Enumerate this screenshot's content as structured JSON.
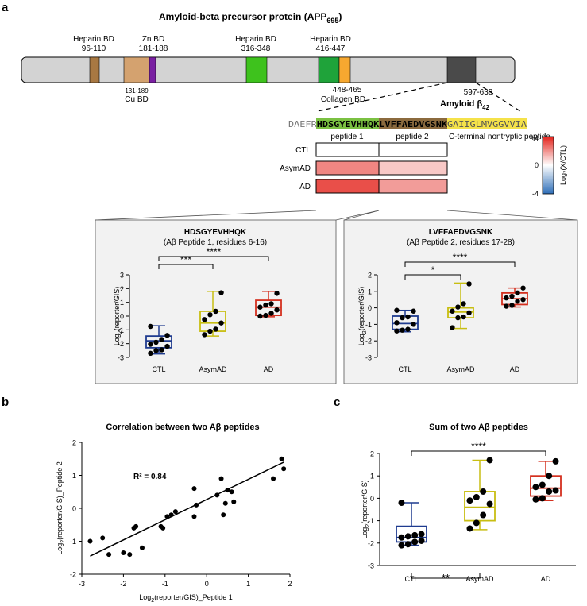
{
  "panel_labels": {
    "a": "a",
    "b": "b",
    "c": "c"
  },
  "panel_a": {
    "title_main": "Amyloid-beta precursor protein (APP",
    "title_sub": "695",
    "title_close": ")",
    "domains": [
      {
        "name": "Heparin BD",
        "range": "96-110",
        "color": "#a87842"
      },
      {
        "name": "Zn BD",
        "range": "181-188",
        "color": "#7a1fa2"
      },
      {
        "name": "Cu BD",
        "range": "131-189",
        "color": "#d4a26f"
      },
      {
        "name": "Heparin BD",
        "range": "316-348",
        "color": "#3ec21d"
      },
      {
        "name": "Heparin BD",
        "range": "416-447",
        "color": "#1fa33a"
      },
      {
        "name": "Collagen BD",
        "range": "448-465",
        "color": "#f7a830"
      },
      {
        "name": "Amyloid β",
        "range": "597-638",
        "color": "#4a4a4a",
        "sub": "42"
      }
    ],
    "sequence": {
      "prefix": "DAEFR",
      "peptide1": "HDSGYEVHHQK",
      "peptide2": "LVFFAEDVGSNK",
      "cterm": "GAIIGLMVGGVVIA",
      "peptide1_label": "peptide 1",
      "peptide2_label": "peptide 2",
      "cterm_label": "C-terminal nontryptic peptide",
      "peptide1_color": "#7bc142",
      "peptide2_color": "#8b6a3e",
      "cterm_color": "#f5e24a"
    },
    "heatmap": {
      "rows": [
        "CTL",
        "AsymAD",
        "AD"
      ],
      "peptide1": [
        0,
        2.2,
        3.2
      ],
      "peptide2": [
        0,
        1.0,
        1.8
      ]
    },
    "colorbar": {
      "max": "+4",
      "mid": "0",
      "min": "-4",
      "label": "Log₂(X/CTL)"
    },
    "inset1": {
      "title": "HDSGYEVHHQK",
      "subtitle": "(Aβ Peptide 1, residues 6-16)"
    },
    "inset2": {
      "title": "LVFFAEDVGSNK",
      "subtitle": "(Aβ Peptide 2, residues 17-28)"
    }
  },
  "chart_data": [
    {
      "type": "box",
      "id": "peptide1",
      "ylabel": "Log₂(reporter/GIS)",
      "ylim": [
        -3,
        3
      ],
      "yticks": [
        "3",
        "2",
        "1",
        "0",
        "-1",
        "-2",
        "-3"
      ],
      "categories": [
        "CTL",
        "AsymAD",
        "AD"
      ],
      "colors": [
        "#1f3b8f",
        "#c8be12",
        "#d4301f"
      ],
      "boxes": [
        {
          "min": -2.75,
          "q1": -2.3,
          "median": -1.8,
          "q3": -1.45,
          "max": -0.7
        },
        {
          "min": -1.45,
          "q1": -1.1,
          "median": -0.5,
          "q3": 0.35,
          "max": 1.8
        },
        {
          "min": -0.05,
          "q1": 0.05,
          "median": 0.65,
          "q3": 1.15,
          "max": 1.8
        }
      ],
      "points": [
        [
          -2.7,
          -2.5,
          -2.45,
          -2.2,
          -2.05,
          -1.9,
          -1.7,
          -1.4,
          -0.75
        ],
        [
          -1.35,
          -1.1,
          -0.95,
          -0.5,
          -0.25,
          0.1,
          0.35,
          1.7
        ],
        [
          0.0,
          0.05,
          0.2,
          0.45,
          0.65,
          0.8,
          0.9,
          1.65
        ]
      ],
      "significance": [
        {
          "from": 0,
          "to": 1,
          "label": "***"
        },
        {
          "from": 0,
          "to": 2,
          "label": "****"
        }
      ]
    },
    {
      "type": "box",
      "id": "peptide2",
      "ylabel": "Log₂(reporter/GIS)",
      "ylim": [
        -3,
        2
      ],
      "yticks": [
        "2",
        "1",
        "0",
        "-1",
        "-2",
        "-3"
      ],
      "categories": [
        "CTL",
        "AsymAD",
        "AD"
      ],
      "colors": [
        "#1f3b8f",
        "#c8be12",
        "#d4301f"
      ],
      "boxes": [
        {
          "min": -1.45,
          "q1": -1.3,
          "median": -0.95,
          "q3": -0.5,
          "max": -0.15
        },
        {
          "min": -1.25,
          "q1": -0.6,
          "median": -0.25,
          "q3": 0.0,
          "max": 1.5
        },
        {
          "min": 0.05,
          "q1": 0.2,
          "median": 0.55,
          "q3": 0.9,
          "max": 1.2
        }
      ],
      "points": [
        [
          -1.4,
          -1.35,
          -1.3,
          -1.0,
          -0.9,
          -0.6,
          -0.55,
          -0.2,
          -0.15
        ],
        [
          -1.2,
          -0.6,
          -0.55,
          -0.3,
          -0.2,
          0.05,
          0.25,
          1.45
        ],
        [
          0.1,
          0.15,
          0.4,
          0.5,
          0.6,
          0.7,
          0.9,
          1.2
        ]
      ],
      "significance": [
        {
          "from": 0,
          "to": 1,
          "label": "*"
        },
        {
          "from": 0,
          "to": 2,
          "label": "****"
        }
      ]
    },
    {
      "type": "scatter",
      "id": "correlation",
      "title": "Correlation between two Aβ peptides",
      "xlabel": "Log₂(reporter/GIS)_Peptide 1",
      "ylabel": "Log₂(reporter/GIS)_Peptide 2",
      "xlim": [
        -3,
        2
      ],
      "ylim": [
        -2,
        2
      ],
      "xticks": [
        "-3",
        "-2",
        "-1",
        "0",
        "1",
        "2"
      ],
      "yticks": [
        "2",
        "1",
        "0",
        "-1",
        "-2"
      ],
      "annotation": "R² = 0.84",
      "fit": {
        "x": [
          -2.8,
          1.85
        ],
        "y": [
          -1.45,
          1.4
        ]
      },
      "x": [
        -2.8,
        -2.5,
        -2.35,
        -2.0,
        -1.85,
        -1.75,
        -1.7,
        -1.55,
        -1.1,
        -1.05,
        -0.95,
        -0.85,
        -0.75,
        -0.3,
        -0.3,
        -0.25,
        0.25,
        0.35,
        0.4,
        0.45,
        0.5,
        0.6,
        0.65,
        1.6,
        1.8,
        1.85
      ],
      "y": [
        -1.0,
        -0.9,
        -1.4,
        -1.35,
        -1.4,
        -0.6,
        -0.55,
        -1.2,
        -0.55,
        -0.6,
        -0.25,
        -0.2,
        -0.1,
        0.6,
        -0.25,
        0.1,
        0.4,
        0.9,
        -0.2,
        0.15,
        0.55,
        0.5,
        0.2,
        0.9,
        1.5,
        1.2
      ]
    },
    {
      "type": "box",
      "id": "sum",
      "title": "Sum of two Aβ peptides",
      "ylabel": "Log₂(reporter/GIS)",
      "ylim": [
        -3,
        2
      ],
      "yticks": [
        "2",
        "1",
        "0",
        "-1",
        "-2",
        "-3"
      ],
      "categories": [
        "CTL",
        "AsymAD",
        "AD"
      ],
      "colors": [
        "#1f3b8f",
        "#c8be12",
        "#d4301f"
      ],
      "boxes": [
        {
          "min": -2.1,
          "q1": -1.95,
          "median": -1.75,
          "q3": -1.25,
          "max": -0.2
        },
        {
          "min": -1.4,
          "q1": -1.0,
          "median": -0.4,
          "q3": 0.3,
          "max": 1.7
        },
        {
          "min": -0.1,
          "q1": 0.1,
          "median": 0.45,
          "q3": 1.0,
          "max": 1.65
        }
      ],
      "points": [
        [
          -2.1,
          -2.05,
          -1.95,
          -1.9,
          -1.75,
          -1.7,
          -1.65,
          -1.6,
          -0.2
        ],
        [
          -1.35,
          -1.1,
          -0.75,
          -0.25,
          -0.1,
          0.05,
          0.3,
          1.7
        ],
        [
          -0.05,
          0.0,
          0.3,
          0.35,
          0.5,
          0.6,
          1.0,
          1.65
        ]
      ],
      "significance": [
        {
          "from": 0,
          "to": 2,
          "label": "****",
          "position": "top"
        },
        {
          "from": 0,
          "to": 1,
          "label": "**",
          "position": "bottom"
        }
      ]
    }
  ]
}
